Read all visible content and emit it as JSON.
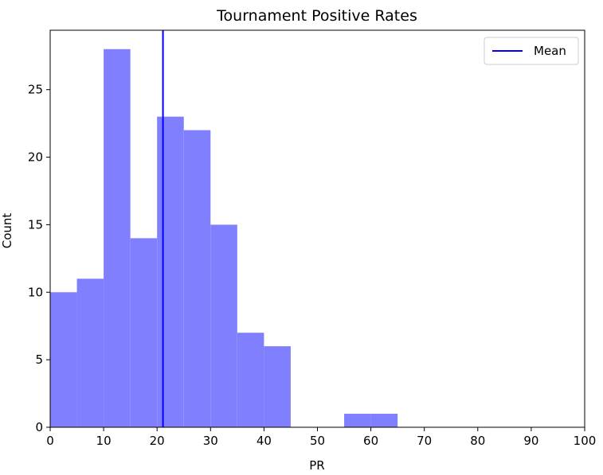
{
  "chart_data": {
    "type": "bar",
    "title": "Tournament Positive Rates",
    "xlabel": "PR",
    "ylabel": "Count",
    "xlim": [
      0,
      100
    ],
    "ylim": [
      0,
      29.4
    ],
    "xticks": [
      0,
      10,
      20,
      30,
      40,
      50,
      60,
      70,
      80,
      90,
      100
    ],
    "yticks": [
      0,
      5,
      10,
      15,
      20,
      25
    ],
    "bins": [
      {
        "x0": 0,
        "x1": 5,
        "count": 10
      },
      {
        "x0": 5,
        "x1": 10,
        "count": 11
      },
      {
        "x0": 10,
        "x1": 15,
        "count": 28
      },
      {
        "x0": 15,
        "x1": 20,
        "count": 14
      },
      {
        "x0": 20,
        "x1": 25,
        "count": 23
      },
      {
        "x0": 25,
        "x1": 30,
        "count": 22
      },
      {
        "x0": 30,
        "x1": 35,
        "count": 15
      },
      {
        "x0": 35,
        "x1": 40,
        "count": 7
      },
      {
        "x0": 40,
        "x1": 45,
        "count": 6
      },
      {
        "x0": 45,
        "x1": 50,
        "count": 0
      },
      {
        "x0": 50,
        "x1": 55,
        "count": 0
      },
      {
        "x0": 55,
        "x1": 60,
        "count": 1
      },
      {
        "x0": 60,
        "x1": 65,
        "count": 1
      }
    ],
    "bar_color": "#8080ff",
    "mean_line": {
      "label": "Mean",
      "x": 21.1,
      "color": "#0000ff"
    },
    "legend": {
      "position": "top-right",
      "entries": [
        "Mean"
      ]
    },
    "grid": false
  }
}
